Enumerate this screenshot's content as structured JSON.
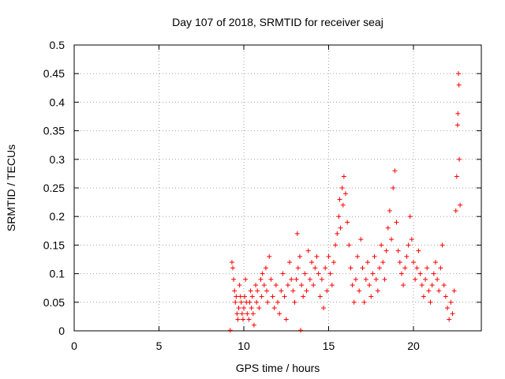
{
  "chart_data": {
    "type": "scatter",
    "title": "Day 107 of 2018, SRMTID for receiver seaj",
    "xlabel": "GPS time / hours",
    "ylabel": "SRMTID / TECUs",
    "xlim": [
      0,
      24
    ],
    "ylim": [
      0,
      0.5
    ],
    "x_ticks": [
      0,
      5,
      10,
      15,
      20
    ],
    "x_tick_labels": [
      "0",
      "5",
      "10",
      "15",
      "20"
    ],
    "y_ticks": [
      0,
      0.05,
      0.1,
      0.15,
      0.2,
      0.25,
      0.3,
      0.35,
      0.4,
      0.45,
      0.5
    ],
    "y_tick_labels": [
      "0",
      "0.05",
      "0.1",
      "0.15",
      "0.2",
      "0.25",
      "0.3",
      "0.35",
      "0.4",
      "0.45",
      "0.5"
    ],
    "grid": true,
    "marker": "+",
    "color": "#ff0000",
    "series": [
      {
        "name": "SRMTID",
        "points": [
          [
            9.2,
            0.001
          ],
          [
            9.3,
            0.12
          ],
          [
            9.35,
            0.11
          ],
          [
            9.4,
            0.09
          ],
          [
            9.45,
            0.07
          ],
          [
            9.5,
            0.05
          ],
          [
            9.55,
            0.06
          ],
          [
            9.6,
            0.03
          ],
          [
            9.65,
            0.02
          ],
          [
            9.7,
            0.04
          ],
          [
            9.75,
            0.08
          ],
          [
            9.8,
            0.06
          ],
          [
            9.85,
            0.05
          ],
          [
            9.9,
            0.03
          ],
          [
            9.95,
            0.02
          ],
          [
            10.0,
            0.04
          ],
          [
            10.05,
            0.06
          ],
          [
            10.1,
            0.09
          ],
          [
            10.15,
            0.05
          ],
          [
            10.2,
            0.03
          ],
          [
            10.3,
            0.02
          ],
          [
            10.35,
            0.05
          ],
          [
            10.4,
            0.07
          ],
          [
            10.45,
            0.04
          ],
          [
            10.5,
            0.06
          ],
          [
            10.55,
            0.03
          ],
          [
            10.6,
            0.01
          ],
          [
            10.7,
            0.08
          ],
          [
            10.75,
            0.05
          ],
          [
            10.8,
            0.07
          ],
          [
            10.9,
            0.04
          ],
          [
            11.0,
            0.09
          ],
          [
            11.05,
            0.06
          ],
          [
            11.1,
            0.1
          ],
          [
            11.2,
            0.08
          ],
          [
            11.3,
            0.11
          ],
          [
            11.35,
            0.07
          ],
          [
            11.4,
            0.05
          ],
          [
            11.5,
            0.13
          ],
          [
            11.6,
            0.09
          ],
          [
            11.7,
            0.06
          ],
          [
            11.8,
            0.04
          ],
          [
            11.9,
            0.08
          ],
          [
            12.0,
            0.05
          ],
          [
            12.1,
            0.03
          ],
          [
            12.2,
            0.07
          ],
          [
            12.3,
            0.1
          ],
          [
            12.4,
            0.06
          ],
          [
            12.5,
            0.02
          ],
          [
            12.6,
            0.08
          ],
          [
            12.7,
            0.12
          ],
          [
            12.8,
            0.09
          ],
          [
            12.9,
            0.07
          ],
          [
            13.0,
            0.05
          ],
          [
            13.1,
            0.09
          ],
          [
            13.15,
            0.17
          ],
          [
            13.2,
            0.11
          ],
          [
            13.3,
            0.13
          ],
          [
            13.35,
            0.001
          ],
          [
            13.4,
            0.08
          ],
          [
            13.5,
            0.06
          ],
          [
            13.6,
            0.1
          ],
          [
            13.7,
            0.07
          ],
          [
            13.8,
            0.14
          ],
          [
            13.9,
            0.09
          ],
          [
            14.0,
            0.12
          ],
          [
            14.1,
            0.08
          ],
          [
            14.2,
            0.11
          ],
          [
            14.3,
            0.13
          ],
          [
            14.4,
            0.1
          ],
          [
            14.5,
            0.06
          ],
          [
            14.6,
            0.09
          ],
          [
            14.7,
            0.04
          ],
          [
            14.8,
            0.11
          ],
          [
            14.9,
            0.07
          ],
          [
            15.0,
            0.13
          ],
          [
            15.1,
            0.1
          ],
          [
            15.2,
            0.08
          ],
          [
            15.3,
            0.12
          ],
          [
            15.4,
            0.15
          ],
          [
            15.5,
            0.17
          ],
          [
            15.6,
            0.2
          ],
          [
            15.65,
            0.23
          ],
          [
            15.7,
            0.18
          ],
          [
            15.8,
            0.25
          ],
          [
            15.85,
            0.22
          ],
          [
            15.9,
            0.27
          ],
          [
            16.0,
            0.24
          ],
          [
            16.1,
            0.19
          ],
          [
            16.2,
            0.15
          ],
          [
            16.3,
            0.11
          ],
          [
            16.4,
            0.08
          ],
          [
            16.5,
            0.05
          ],
          [
            16.6,
            0.09
          ],
          [
            16.7,
            0.13
          ],
          [
            16.8,
            0.07
          ],
          [
            16.9,
            0.16
          ],
          [
            17.0,
            0.11
          ],
          [
            17.1,
            0.05
          ],
          [
            17.2,
            0.09
          ],
          [
            17.3,
            0.12
          ],
          [
            17.4,
            0.08
          ],
          [
            17.5,
            0.06
          ],
          [
            17.6,
            0.1
          ],
          [
            17.7,
            0.13
          ],
          [
            17.8,
            0.09
          ],
          [
            17.9,
            0.07
          ],
          [
            18.0,
            0.11
          ],
          [
            18.1,
            0.15
          ],
          [
            18.2,
            0.12
          ],
          [
            18.3,
            0.09
          ],
          [
            18.4,
            0.14
          ],
          [
            18.5,
            0.18
          ],
          [
            18.6,
            0.21
          ],
          [
            18.7,
            0.16
          ],
          [
            18.8,
            0.25
          ],
          [
            18.9,
            0.28
          ],
          [
            19.0,
            0.19
          ],
          [
            19.1,
            0.14
          ],
          [
            19.2,
            0.12
          ],
          [
            19.3,
            0.1
          ],
          [
            19.4,
            0.08
          ],
          [
            19.5,
            0.11
          ],
          [
            19.6,
            0.13
          ],
          [
            19.7,
            0.15
          ],
          [
            19.8,
            0.2
          ],
          [
            19.9,
            0.16
          ],
          [
            20.0,
            0.12
          ],
          [
            20.1,
            0.09
          ],
          [
            20.2,
            0.11
          ],
          [
            20.3,
            0.14
          ],
          [
            20.4,
            0.1
          ],
          [
            20.5,
            0.08
          ],
          [
            20.6,
            0.06
          ],
          [
            20.7,
            0.09
          ],
          [
            20.8,
            0.11
          ],
          [
            20.9,
            0.07
          ],
          [
            21.0,
            0.05
          ],
          [
            21.1,
            0.08
          ],
          [
            21.2,
            0.1
          ],
          [
            21.3,
            0.12
          ],
          [
            21.4,
            0.09
          ],
          [
            21.5,
            0.07
          ],
          [
            21.6,
            0.11
          ],
          [
            21.7,
            0.15
          ],
          [
            21.8,
            0.08
          ],
          [
            21.9,
            0.06
          ],
          [
            22.0,
            0.04
          ],
          [
            22.1,
            0.02
          ],
          [
            22.2,
            0.05
          ],
          [
            22.3,
            0.03
          ],
          [
            22.4,
            0.07
          ],
          [
            22.5,
            0.21
          ],
          [
            22.55,
            0.27
          ],
          [
            22.6,
            0.36
          ],
          [
            22.62,
            0.38
          ],
          [
            22.65,
            0.45
          ],
          [
            22.68,
            0.43
          ],
          [
            22.7,
            0.3
          ],
          [
            22.75,
            0.22
          ]
        ]
      }
    ]
  }
}
